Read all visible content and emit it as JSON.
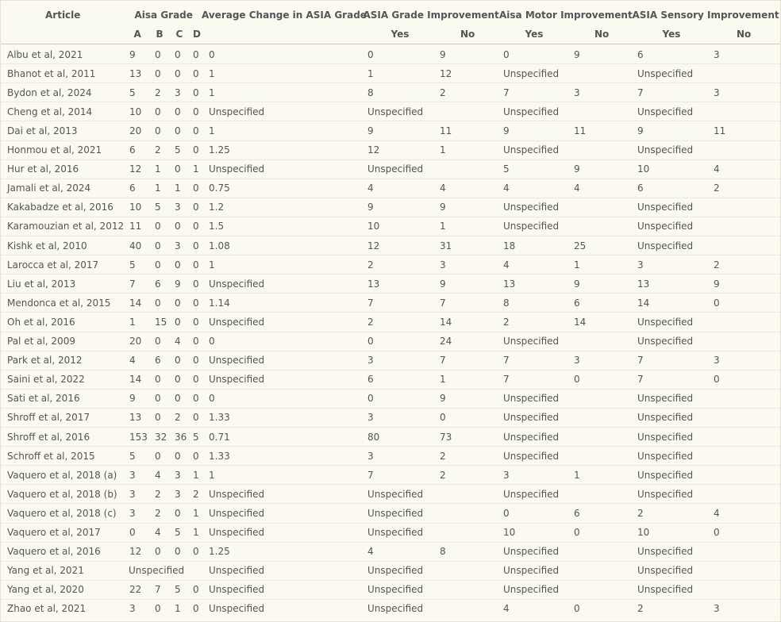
{
  "table": {
    "columns": [
      "Article",
      "Aisa Grade",
      "Average Change in ASIA Grade",
      "ASIA Grade Improvement",
      "Aisa Motor Improvement",
      "ASIA Sensory Improvement"
    ],
    "subheaders": [
      [
        "A",
        "B",
        "C",
        "D"
      ],
      [
        "Yes",
        "No"
      ],
      [
        "Yes",
        "No"
      ],
      [
        "Yes",
        "No"
      ]
    ],
    "rows": [
      [
        "Albu et al, 2021",
        [
          9,
          0,
          0,
          0
        ],
        0,
        [
          0,
          9
        ],
        [
          0,
          9
        ],
        [
          6,
          3
        ]
      ],
      [
        "Bhanot et al, 2011",
        [
          13,
          0,
          0,
          0
        ],
        1,
        [
          1,
          12
        ],
        "Unspecified",
        "Unspecified"
      ],
      [
        "Bydon et al, 2024",
        [
          5,
          2,
          3,
          0
        ],
        1,
        [
          8,
          2
        ],
        [
          7,
          3
        ],
        [
          7,
          3
        ]
      ],
      [
        "Cheng et al, 2014",
        [
          10,
          0,
          0,
          0
        ],
        "Unspecified",
        "Unspecified",
        "Unspecified",
        "Unspecified"
      ],
      [
        "Dai et al, 2013",
        [
          20,
          0,
          0,
          0
        ],
        1,
        [
          9,
          11
        ],
        [
          9,
          11
        ],
        [
          9,
          11
        ]
      ],
      [
        "Honmou et al, 2021",
        [
          6,
          2,
          5,
          0
        ],
        1.25,
        [
          12,
          1
        ],
        "Unspecified",
        "Unspecified"
      ],
      [
        "Hur et al, 2016",
        [
          12,
          1,
          0,
          1
        ],
        "Unspecified",
        "Unspecified",
        [
          5,
          9
        ],
        [
          10,
          4
        ]
      ],
      [
        "Jamali et al, 2024",
        [
          6,
          1,
          1,
          0
        ],
        0.75,
        [
          4,
          4
        ],
        [
          4,
          4
        ],
        [
          6,
          2
        ]
      ],
      [
        "Kakabadze et al, 2016",
        [
          10,
          5,
          3,
          0
        ],
        1.2,
        [
          9,
          9
        ],
        "Unspecified",
        "Unspecified"
      ],
      [
        "Karamouzian et al, 2012",
        [
          11,
          0,
          0,
          0
        ],
        1.5,
        [
          10,
          1
        ],
        "Unspecified",
        "Unspecified"
      ],
      [
        "Kishk et al, 2010",
        [
          40,
          0,
          3,
          0
        ],
        1.08,
        [
          12,
          31
        ],
        [
          18,
          25
        ],
        "Unspecified"
      ],
      [
        "Larocca et al, 2017",
        [
          5,
          0,
          0,
          0
        ],
        1,
        [
          2,
          3
        ],
        [
          4,
          1
        ],
        [
          3,
          2
        ]
      ],
      [
        "Liu et al, 2013",
        [
          7,
          6,
          9,
          0
        ],
        "Unspecified",
        [
          13,
          9
        ],
        [
          13,
          9
        ],
        [
          13,
          9
        ]
      ],
      [
        "Mendonca et al, 2015",
        [
          14,
          0,
          0,
          0
        ],
        1.14,
        [
          7,
          7
        ],
        [
          8,
          6
        ],
        [
          14,
          0
        ]
      ],
      [
        "Oh et al, 2016",
        [
          1,
          15,
          0,
          0
        ],
        "Unspecified",
        [
          2,
          14
        ],
        [
          2,
          14
        ],
        "Unspecified"
      ],
      [
        "Pal et al, 2009",
        [
          20,
          0,
          4,
          0
        ],
        0,
        [
          0,
          24
        ],
        "Unspecified",
        "Unspecified"
      ],
      [
        "Park et al, 2012",
        [
          4,
          6,
          0,
          0
        ],
        "Unspecified",
        [
          3,
          7
        ],
        [
          7,
          3
        ],
        [
          7,
          3
        ]
      ],
      [
        "Saini et al, 2022",
        [
          14,
          0,
          0,
          0
        ],
        "Unspecified",
        [
          6,
          1
        ],
        [
          7,
          0
        ],
        [
          7,
          0
        ]
      ],
      [
        "Sati et al, 2016",
        [
          9,
          0,
          0,
          0
        ],
        0,
        [
          0,
          9
        ],
        "Unspecified",
        "Unspecified"
      ],
      [
        "Shroff et al, 2017",
        [
          13,
          0,
          2,
          0
        ],
        1.33,
        [
          3,
          0
        ],
        "Unspecified",
        "Unspecified"
      ],
      [
        "Shroff et al, 2016",
        [
          153,
          32,
          36,
          5
        ],
        0.71,
        [
          80,
          73
        ],
        "Unspecified",
        "Unspecified"
      ],
      [
        "Schroff et al, 2015",
        [
          5,
          0,
          0,
          0
        ],
        1.33,
        [
          3,
          2
        ],
        "Unspecified",
        "Unspecified"
      ],
      [
        "Vaquero et al, 2018 (a)",
        [
          3,
          4,
          3,
          1
        ],
        1,
        [
          7,
          2
        ],
        [
          3,
          1
        ],
        "Unspecified"
      ],
      [
        "Vaquero et al, 2018 (b)",
        [
          3,
          2,
          3,
          2
        ],
        "Unspecified",
        "Unspecified",
        "Unspecified",
        "Unspecified"
      ],
      [
        "Vaquero et al, 2018 (c)",
        [
          3,
          2,
          0,
          1
        ],
        "Unspecified",
        "Unspecified",
        [
          0,
          6
        ],
        [
          2,
          4
        ]
      ],
      [
        "Vaquero et al, 2017",
        [
          0,
          4,
          5,
          1
        ],
        "Unspecified",
        "Unspecified",
        [
          10,
          0
        ],
        [
          10,
          0
        ]
      ],
      [
        "Vaquero et al, 2016",
        [
          12,
          0,
          0,
          0
        ],
        1.25,
        [
          4,
          8
        ],
        "Unspecified",
        "Unspecified"
      ],
      [
        "Yang et al, 2021",
        "Unspecified",
        "Unspecified",
        "Unspecified",
        "Unspecified",
        "Unspecified"
      ],
      [
        "Yang et al, 2020",
        [
          22,
          7,
          5,
          0
        ],
        "Unspecified",
        "Unspecified",
        "Unspecified",
        "Unspecified"
      ],
      [
        "Zhao et al, 2021",
        [
          3,
          0,
          1,
          0
        ],
        "Unspecified",
        "Unspecified",
        [
          4,
          0
        ],
        [
          2,
          3
        ]
      ]
    ]
  }
}
